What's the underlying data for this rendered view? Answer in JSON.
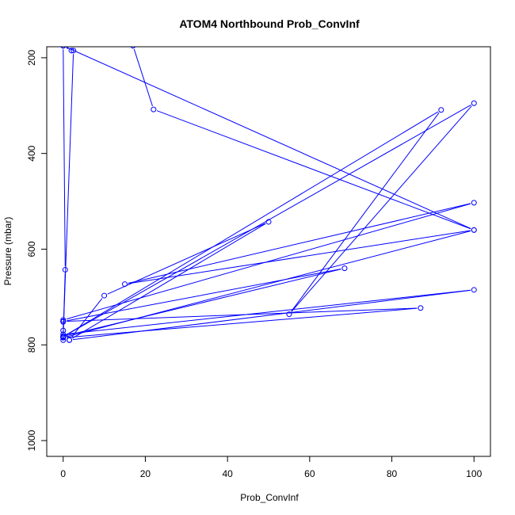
{
  "chart_data": {
    "type": "line",
    "title": "ATOM4 Northbound Prob_ConvInf",
    "xlabel": "Prob_ConvInf",
    "ylabel": "Pressure (mbar)",
    "xlim": [
      -4,
      104
    ],
    "ylim": [
      1033,
      177
    ],
    "y_reversed": true,
    "x_ticks": [
      0,
      20,
      40,
      60,
      80,
      100
    ],
    "y_ticks": [
      200,
      400,
      600,
      800,
      1000
    ],
    "grid": false,
    "legend": "none",
    "series_color": "#0000ff",
    "marker": "open-circle",
    "series": [
      {
        "x": [
          17,
          22,
          100,
          15,
          100,
          0,
          0,
          0,
          1.5,
          10,
          50,
          1.5,
          100,
          0,
          0,
          92,
          55,
          100,
          0,
          0,
          0,
          68.5,
          0,
          87,
          0,
          100,
          0,
          0.5,
          0,
          2.5,
          2,
          0
        ],
        "y": [
          175,
          308,
          560,
          673,
          503,
          748,
          752,
          770,
          790,
          697,
          543,
          790,
          685,
          778,
          783,
          309,
          736,
          295,
          783,
          790,
          782,
          640,
          751,
          723,
          785,
          560,
          175,
          643,
          783,
          185,
          185,
          175
        ]
      }
    ]
  }
}
